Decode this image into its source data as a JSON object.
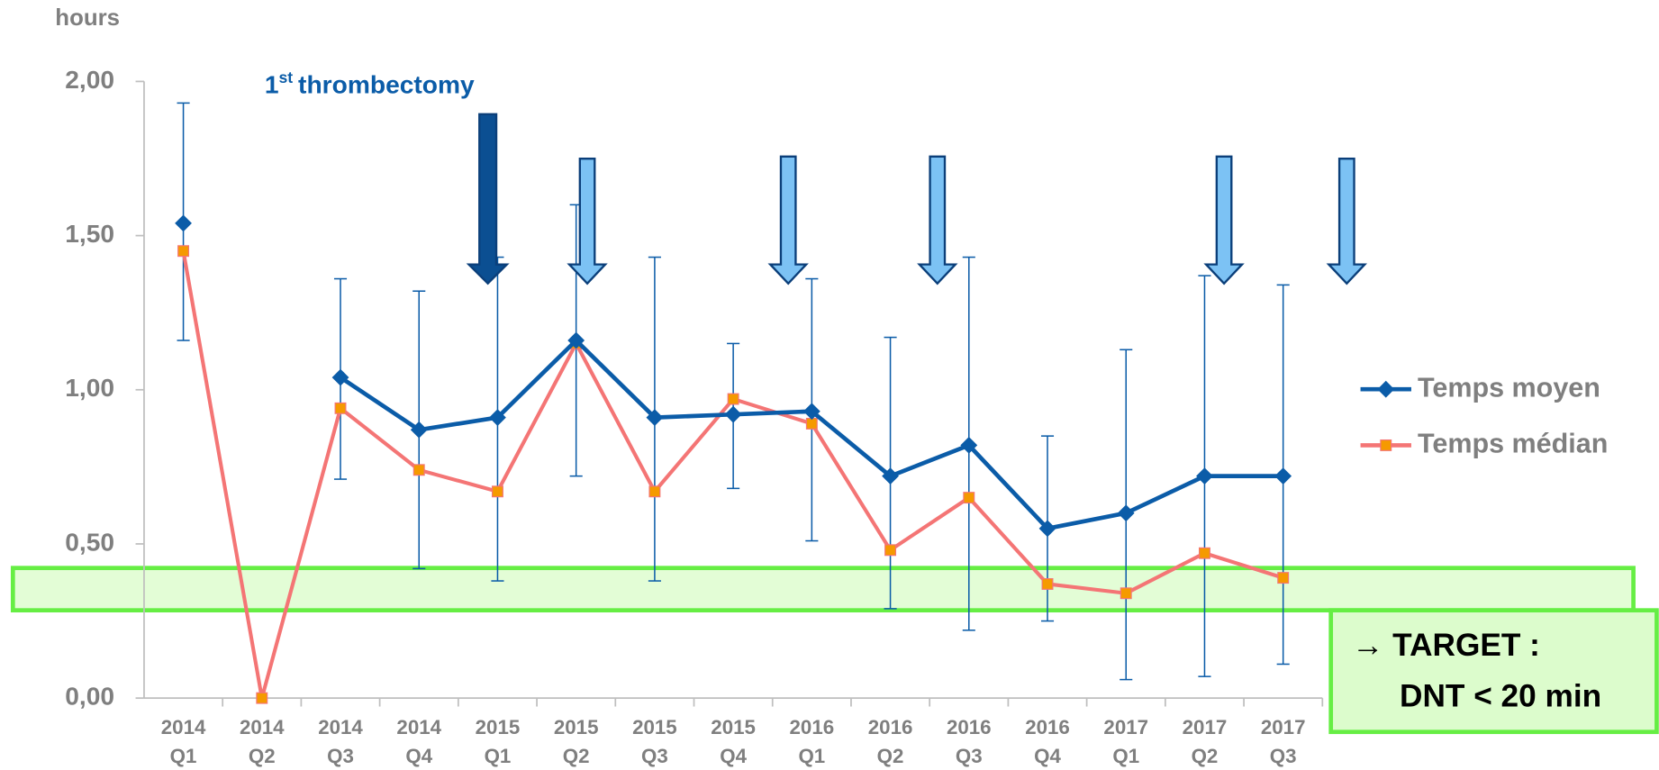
{
  "chart_data": {
    "type": "line",
    "y_label": "hours",
    "categories": [
      [
        "2014",
        "Q1"
      ],
      [
        "2014",
        "Q2"
      ],
      [
        "2014",
        "Q3"
      ],
      [
        "2014",
        "Q4"
      ],
      [
        "2015",
        "Q1"
      ],
      [
        "2015",
        "Q2"
      ],
      [
        "2015",
        "Q3"
      ],
      [
        "2015",
        "Q4"
      ],
      [
        "2016",
        "Q1"
      ],
      [
        "2016",
        "Q2"
      ],
      [
        "2016",
        "Q3"
      ],
      [
        "2016",
        "Q4"
      ],
      [
        "2017",
        "Q1"
      ],
      [
        "2017",
        "Q2"
      ],
      [
        "2017",
        "Q3"
      ]
    ],
    "ylim": [
      0,
      2
    ],
    "yticks": [
      {
        "value": 0,
        "label": "0,00"
      },
      {
        "value": 0.5,
        "label": "0,50"
      },
      {
        "value": 1,
        "label": "1,00"
      },
      {
        "value": 1.5,
        "label": "1,50"
      },
      {
        "value": 2,
        "label": "2,00"
      }
    ],
    "series": [
      {
        "name": "Temps moyen",
        "color": "#0b5ca8",
        "marker": "diamond",
        "values": [
          1.54,
          null,
          1.04,
          0.87,
          0.91,
          1.16,
          0.91,
          0.92,
          0.93,
          0.72,
          0.82,
          0.55,
          0.6,
          0.72,
          0.72
        ],
        "upper": [
          1.93,
          null,
          1.36,
          1.32,
          1.43,
          1.6,
          1.43,
          1.15,
          1.36,
          1.17,
          1.43,
          0.85,
          1.13,
          1.37,
          1.34
        ],
        "lower": [
          1.16,
          null,
          0.71,
          0.42,
          0.38,
          0.72,
          0.38,
          0.68,
          0.51,
          0.29,
          0.22,
          0.25,
          0.06,
          0.07,
          0.11
        ]
      },
      {
        "name": "Temps médian",
        "color": "#f47575",
        "marker_color": "#f59a00",
        "marker": "square",
        "values": [
          1.45,
          0,
          0.94,
          0.74,
          0.67,
          1.15,
          0.67,
          0.97,
          0.89,
          0.48,
          0.65,
          0.37,
          0.34,
          0.47,
          0.39
        ]
      }
    ],
    "annotation_parts": [
      "1",
      "st",
      "thrombectomy"
    ],
    "target_text": [
      "→ TARGET :",
      "DNT < 20 min"
    ]
  }
}
